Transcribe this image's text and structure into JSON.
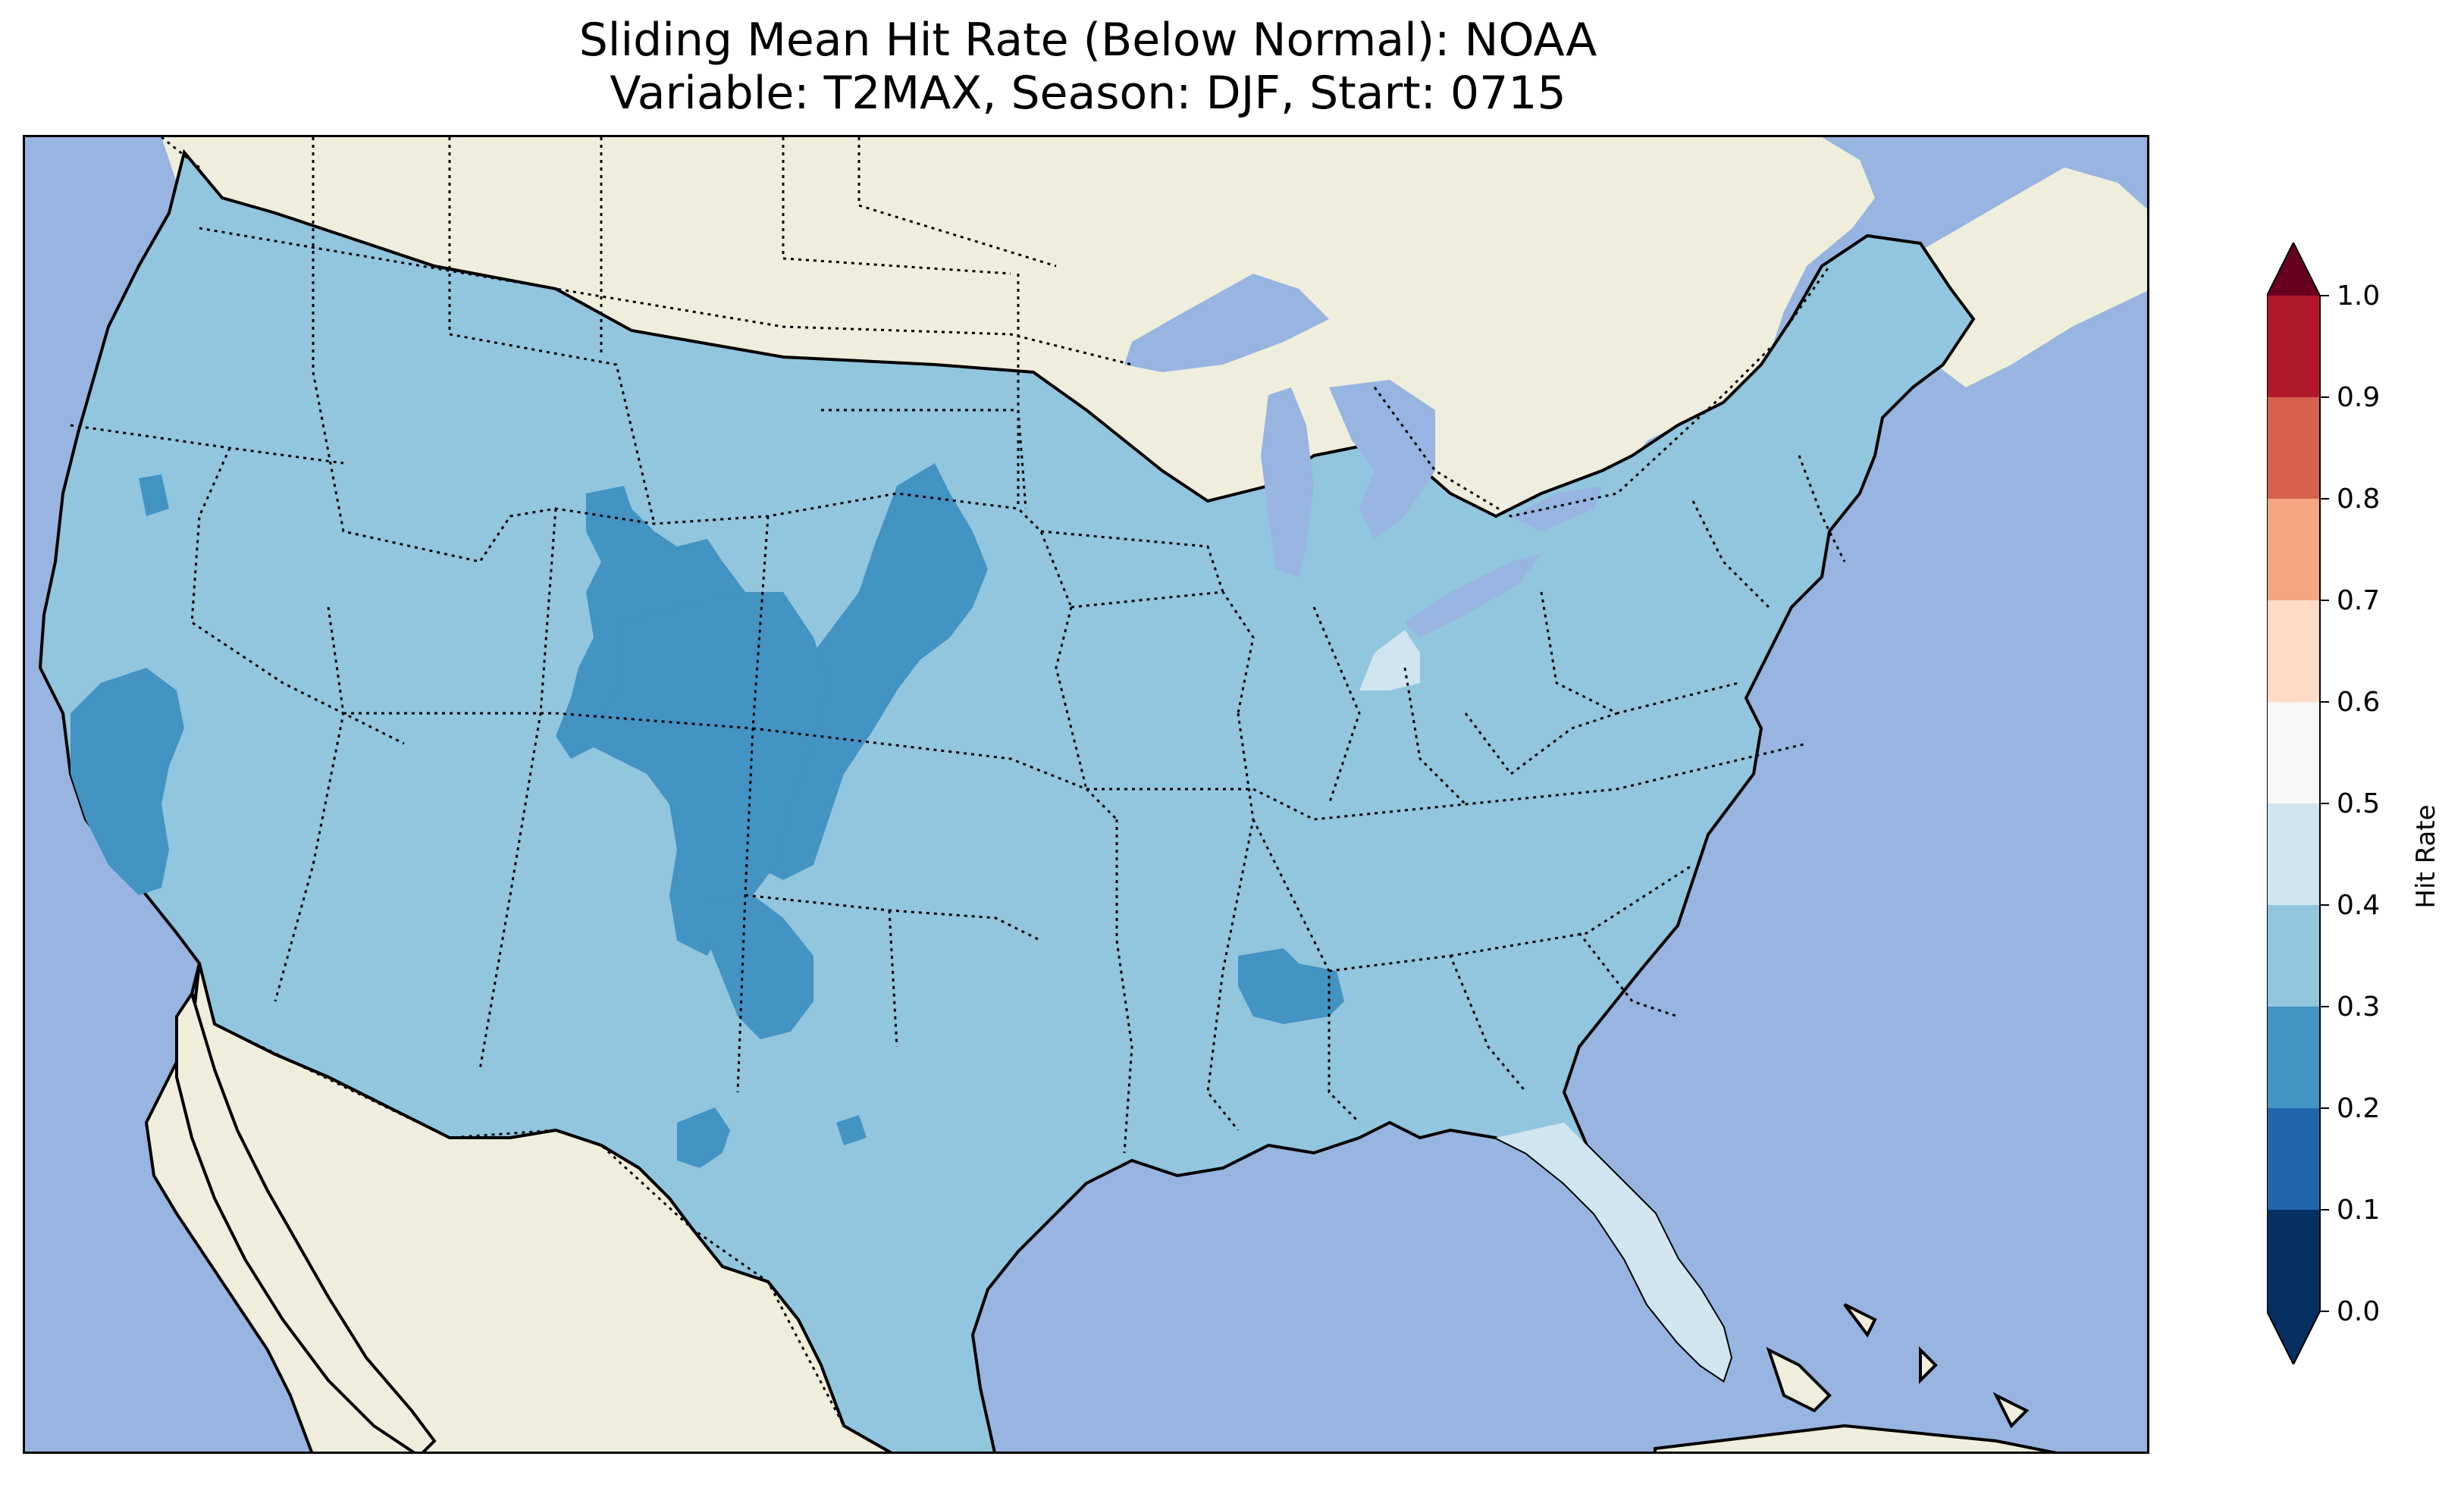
{
  "title": {
    "line1": "Sliding Mean Hit Rate (Below Normal): NOAA",
    "line2": "Variable: T2MAX, Season: DJF, Start: 0715"
  },
  "map": {
    "region": "Contiguous United States",
    "ocean_color": "#98b4e0",
    "land_color": "#efeedc",
    "lake_color": "#98b4e0",
    "dominant_bin": "0.3–0.4",
    "features": [
      "coastlines",
      "state borders (dotted)",
      "country borders (dotted)",
      "lakes"
    ]
  },
  "colorbar": {
    "label": "Hit Rate",
    "extend": "both",
    "ticks": [
      "0.0",
      "0.1",
      "0.2",
      "0.3",
      "0.4",
      "0.5",
      "0.6",
      "0.7",
      "0.8",
      "0.9",
      "1.0"
    ],
    "bins": [
      {
        "range": [
          0.0,
          0.1
        ],
        "color": "#053061"
      },
      {
        "range": [
          0.1,
          0.2
        ],
        "color": "#2166ac"
      },
      {
        "range": [
          0.2,
          0.3
        ],
        "color": "#4393c3"
      },
      {
        "range": [
          0.3,
          0.4
        ],
        "color": "#92c5de"
      },
      {
        "range": [
          0.4,
          0.5
        ],
        "color": "#d1e5f0"
      },
      {
        "range": [
          0.5,
          0.6
        ],
        "color": "#f7f7f7"
      },
      {
        "range": [
          0.6,
          0.7
        ],
        "color": "#fddbc7"
      },
      {
        "range": [
          0.7,
          0.8
        ],
        "color": "#f4a582"
      },
      {
        "range": [
          0.8,
          0.9
        ],
        "color": "#d6604d"
      },
      {
        "range": [
          0.9,
          1.0
        ],
        "color": "#b2182b"
      }
    ],
    "under_color": "#053061",
    "over_color": "#67001f"
  }
}
